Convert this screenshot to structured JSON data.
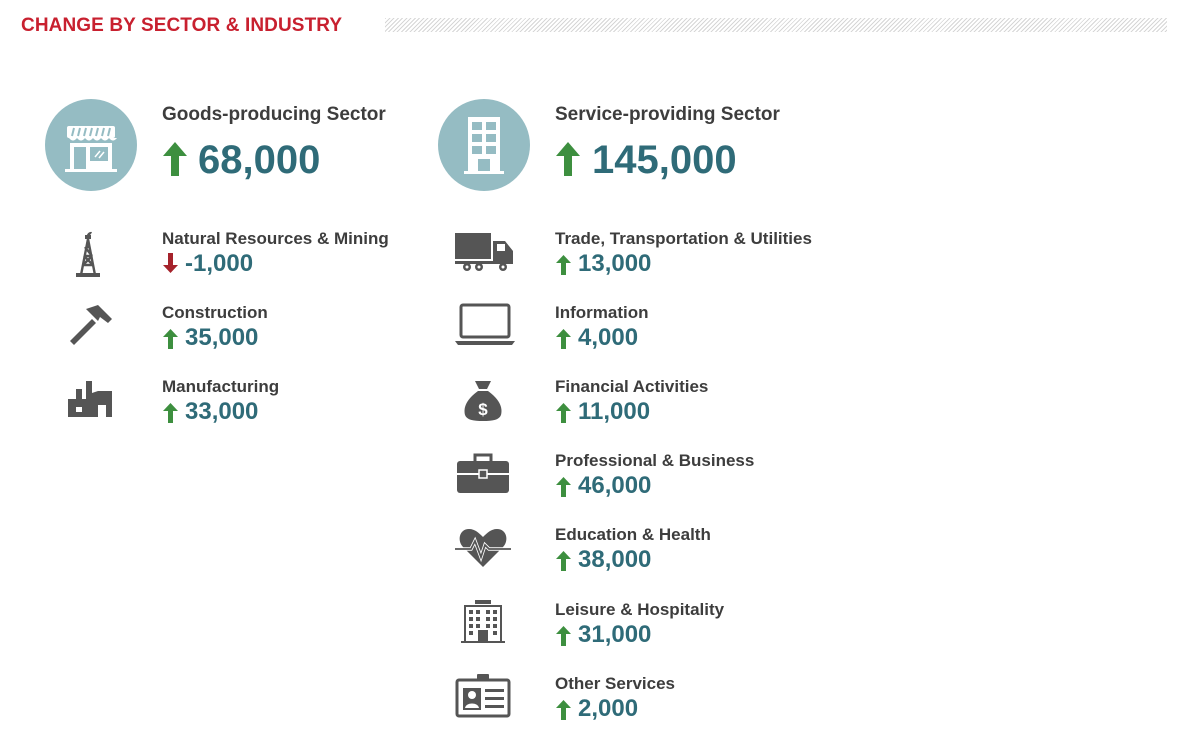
{
  "header": {
    "title": "CHANGE BY SECTOR & INDUSTRY"
  },
  "colors": {
    "accent_red": "#c8202f",
    "value_teal": "#2f6b78",
    "circle_blue": "#95bcc3",
    "icon_gray": "#555555",
    "arrow_up": "#3d8f3f",
    "arrow_down": "#a5222b"
  },
  "sectors": [
    {
      "name": "Goods-producing Sector",
      "value": "68,000",
      "direction": "up",
      "icon": "storefront-icon",
      "industries": [
        {
          "name": "Natural Resources & Mining",
          "value": "-1,000",
          "direction": "down",
          "icon": "oil-derrick-icon"
        },
        {
          "name": "Construction",
          "value": "35,000",
          "direction": "up",
          "icon": "hammer-icon"
        },
        {
          "name": "Manufacturing",
          "value": "33,000",
          "direction": "up",
          "icon": "factory-icon"
        }
      ]
    },
    {
      "name": "Service-providing Sector",
      "value": "145,000",
      "direction": "up",
      "icon": "office-building-icon",
      "industries": [
        {
          "name": "Trade, Transportation & Utilities",
          "value": "13,000",
          "direction": "up",
          "icon": "truck-icon"
        },
        {
          "name": "Information",
          "value": "4,000",
          "direction": "up",
          "icon": "laptop-icon"
        },
        {
          "name": "Financial Activities",
          "value": "11,000",
          "direction": "up",
          "icon": "money-bag-icon"
        },
        {
          "name": "Professional & Business",
          "value": "46,000",
          "direction": "up",
          "icon": "briefcase-icon"
        },
        {
          "name": "Education & Health",
          "value": "38,000",
          "direction": "up",
          "icon": "heart-pulse-icon"
        },
        {
          "name": "Leisure & Hospitality",
          "value": "31,000",
          "direction": "up",
          "icon": "hotel-icon"
        },
        {
          "name": "Other Services",
          "value": "2,000",
          "direction": "up",
          "icon": "id-card-icon"
        }
      ]
    }
  ]
}
